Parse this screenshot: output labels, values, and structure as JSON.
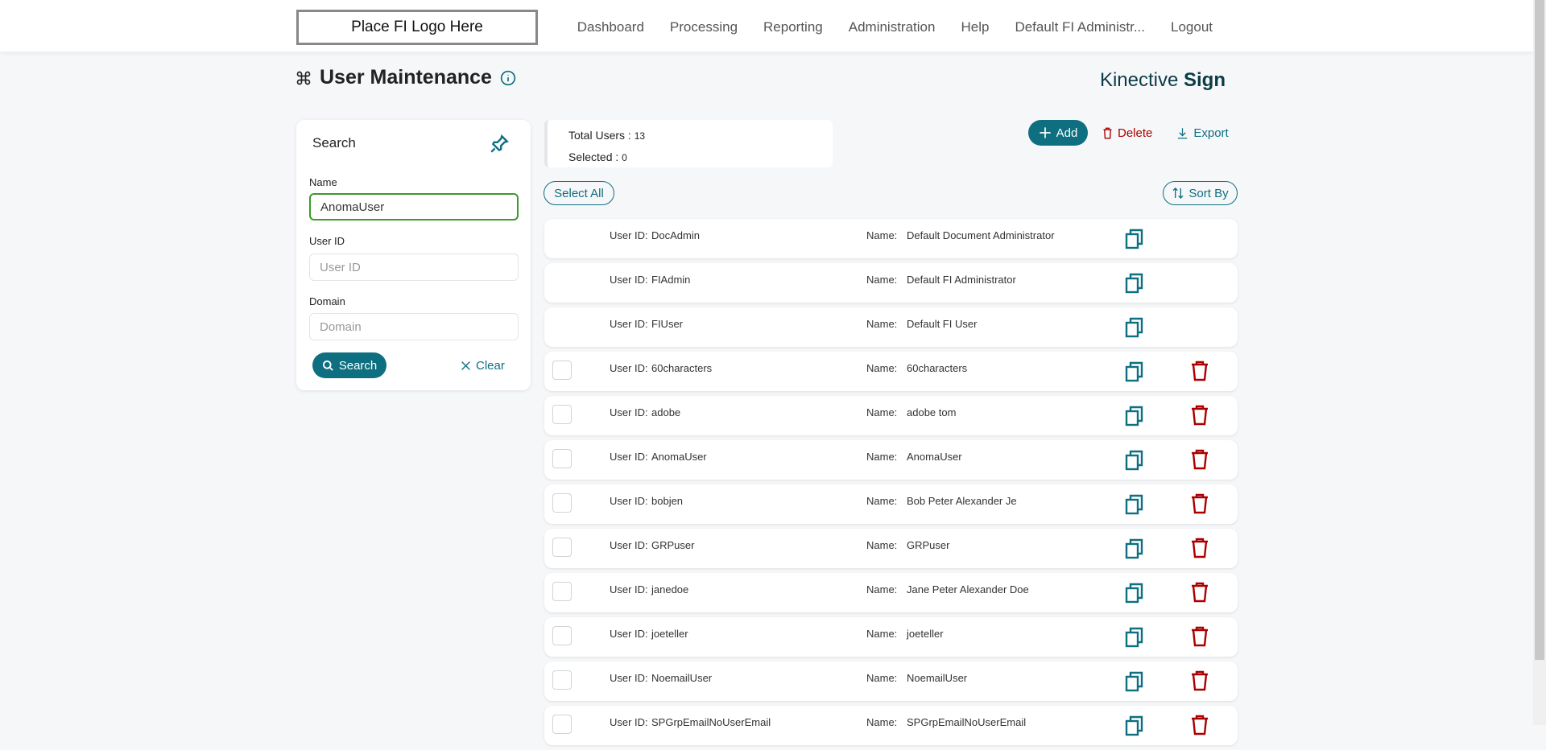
{
  "header": {
    "logo": "Place FI Logo Here",
    "nav": [
      "Dashboard",
      "Processing",
      "Reporting",
      "Administration",
      "Help",
      "Default FI Administr...",
      "Logout"
    ]
  },
  "page": {
    "title": "User Maintenance",
    "brand_light": "Kinective",
    "brand_bold": "Sign"
  },
  "search": {
    "title": "Search",
    "name_label": "Name",
    "name_value": "AnomaUser",
    "userid_label": "User ID",
    "userid_placeholder": "User ID",
    "domain_label": "Domain",
    "domain_placeholder": "Domain",
    "search_btn": "Search",
    "clear_btn": "Clear"
  },
  "stats": {
    "total_label": "Total Users :",
    "total": "13",
    "selected_label": "Selected :",
    "selected": "0"
  },
  "actions": {
    "add": "Add",
    "delete": "Delete",
    "export": "Export",
    "select_all": "Select All",
    "sort_by": "Sort By"
  },
  "labels": {
    "user_id": "User ID:",
    "name": "Name:"
  },
  "colors": {
    "accent": "#0e6f80",
    "danger": "#aa0000",
    "focus": "#3a9a2a"
  },
  "users": [
    {
      "id": "DocAdmin",
      "name": "Default Document Administrator",
      "deletable": false
    },
    {
      "id": "FIAdmin",
      "name": "Default FI Administrator",
      "deletable": false
    },
    {
      "id": "FIUser",
      "name": "Default FI User",
      "deletable": false
    },
    {
      "id": "60characters",
      "name": "60characters",
      "deletable": true
    },
    {
      "id": "adobe",
      "name": "adobe tom",
      "deletable": true
    },
    {
      "id": "AnomaUser",
      "name": "AnomaUser",
      "deletable": true
    },
    {
      "id": "bobjen",
      "name": "Bob Peter Alexander Je",
      "deletable": true
    },
    {
      "id": "GRPuser",
      "name": "GRPuser",
      "deletable": true
    },
    {
      "id": "janedoe",
      "name": "Jane Peter Alexander Doe",
      "deletable": true
    },
    {
      "id": "joeteller",
      "name": "joeteller",
      "deletable": true
    },
    {
      "id": "NoemailUser",
      "name": "NoemailUser",
      "deletable": true
    },
    {
      "id": "SPGrpEmailNoUserEmail",
      "name": "SPGrpEmailNoUserEmail",
      "deletable": true
    }
  ]
}
